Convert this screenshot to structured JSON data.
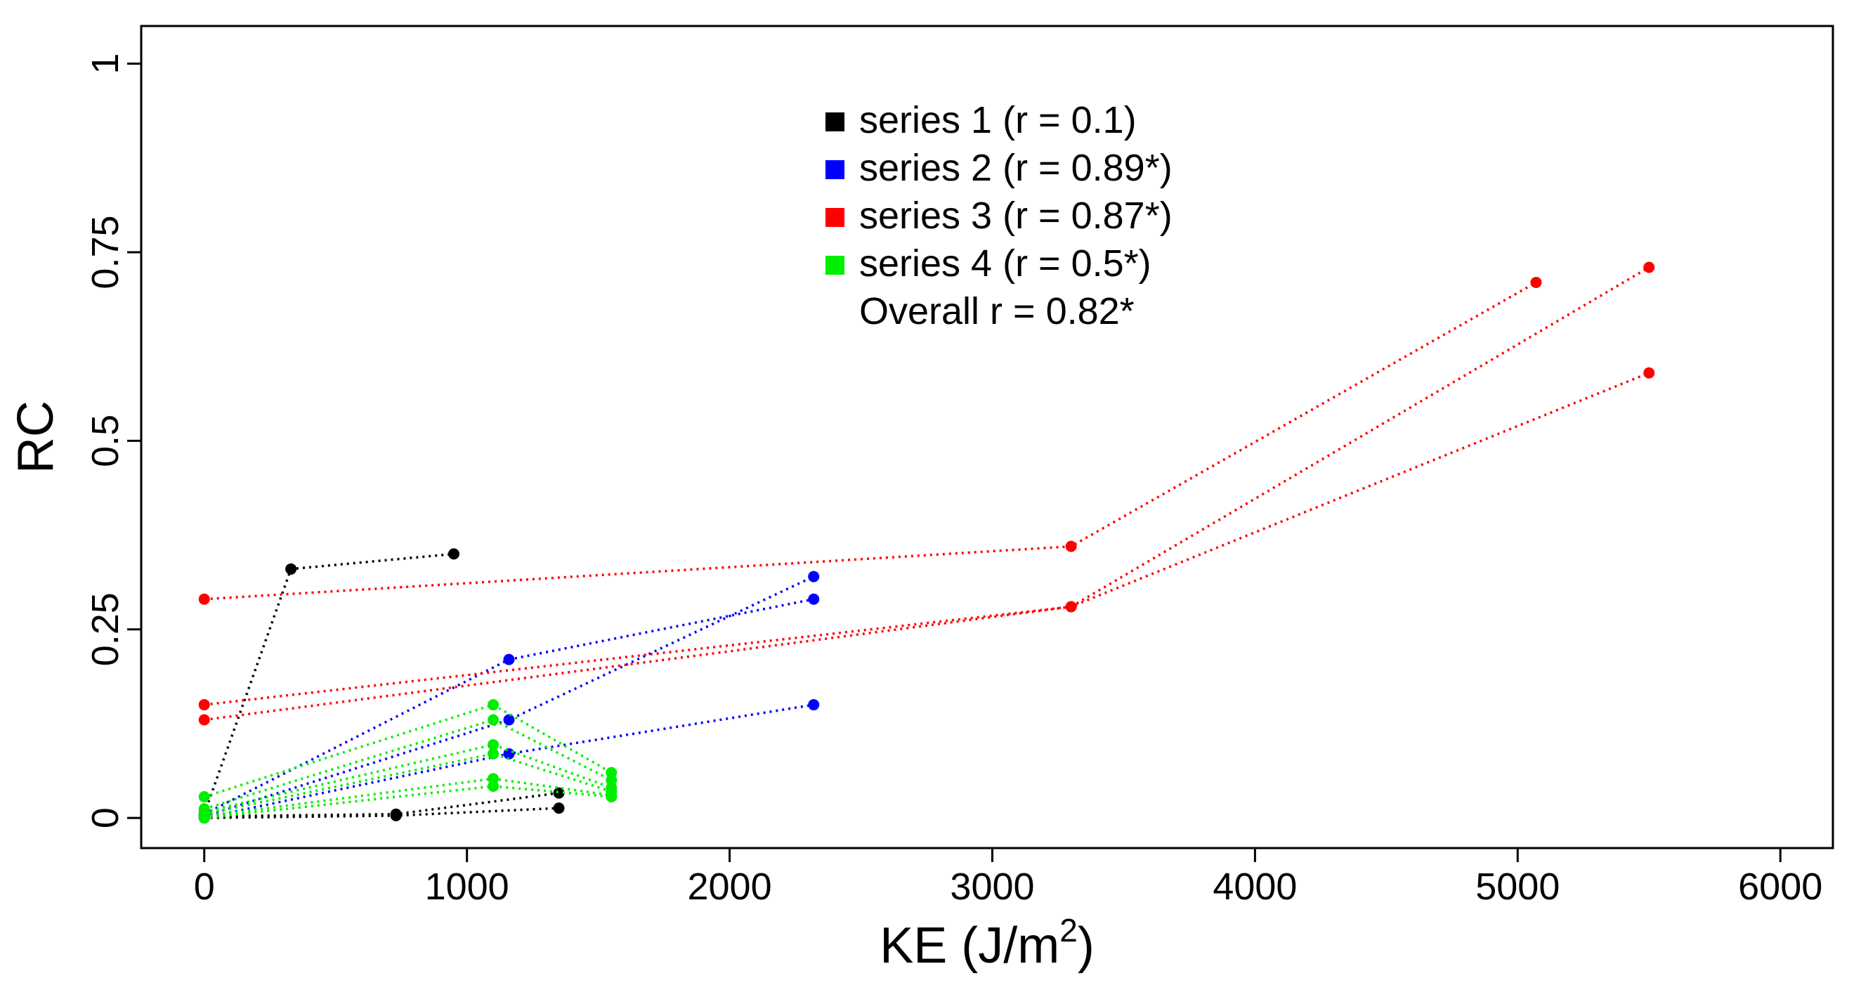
{
  "chart_data": {
    "type": "scatter",
    "xlabel": "KE (J/m",
    "xlabel_superscript": "2",
    "xlabel_suffix": ")",
    "ylabel": "RC",
    "xlim": [
      -240,
      6200
    ],
    "ylim": [
      -0.04,
      1.05
    ],
    "x_ticks": [
      0,
      1000,
      2000,
      3000,
      4000,
      5000,
      6000
    ],
    "x_tick_labels": [
      "0",
      "1000",
      "2000",
      "3000",
      "4000",
      "5000",
      "6000"
    ],
    "y_ticks": [
      0,
      0.25,
      0.5,
      0.75,
      1
    ],
    "y_tick_labels": [
      "0",
      "0.25",
      "0.5",
      "0.75",
      "1"
    ],
    "legend_position": "top-center",
    "overall_label": "Overall r = 0.82*",
    "series": [
      {
        "name": "series 1 (r = 0.1)",
        "color": "#000000",
        "lines": [
          [
            [
              0,
              0.005
            ],
            [
              330,
              0.33
            ],
            [
              950,
              0.35
            ]
          ],
          [
            [
              0,
              0.0
            ],
            [
              730,
              0.003
            ],
            [
              1350,
              0.013
            ]
          ],
          [
            [
              0,
              0.002
            ],
            [
              730,
              0.005
            ],
            [
              1350,
              0.033
            ]
          ]
        ]
      },
      {
        "name": "series 2 (r = 0.89*)",
        "color": "#0000ff",
        "lines": [
          [
            [
              0,
              0.005
            ],
            [
              1160,
              0.21
            ],
            [
              2320,
              0.29
            ]
          ],
          [
            [
              0,
              0.002
            ],
            [
              1160,
              0.13
            ],
            [
              2320,
              0.32
            ]
          ],
          [
            [
              0,
              0.0
            ],
            [
              1160,
              0.085
            ],
            [
              2320,
              0.15
            ]
          ]
        ]
      },
      {
        "name": "series 3 (r = 0.87*)",
        "color": "#ff0000",
        "lines": [
          [
            [
              0,
              0.29
            ],
            [
              3300,
              0.36
            ],
            [
              5070,
              0.71
            ]
          ],
          [
            [
              0,
              0.15
            ],
            [
              3300,
              0.28
            ],
            [
              5500,
              0.73
            ]
          ],
          [
            [
              0,
              0.13
            ],
            [
              3300,
              0.28
            ],
            [
              5500,
              0.59
            ]
          ]
        ]
      },
      {
        "name": "series 4 (r = 0.5*)",
        "color": "#00ee00",
        "lines": [
          [
            [
              0,
              0.028
            ],
            [
              1100,
              0.15
            ],
            [
              1550,
              0.06
            ]
          ],
          [
            [
              0,
              0.012
            ],
            [
              1100,
              0.13
            ],
            [
              1550,
              0.05
            ]
          ],
          [
            [
              0,
              0.008
            ],
            [
              1100,
              0.097
            ],
            [
              1550,
              0.04
            ]
          ],
          [
            [
              0,
              0.005
            ],
            [
              1100,
              0.085
            ],
            [
              1550,
              0.035
            ]
          ],
          [
            [
              0,
              0.002
            ],
            [
              1100,
              0.052
            ],
            [
              1550,
              0.03
            ]
          ],
          [
            [
              0,
              0.0
            ],
            [
              1100,
              0.042
            ],
            [
              1550,
              0.028
            ]
          ]
        ]
      }
    ]
  }
}
